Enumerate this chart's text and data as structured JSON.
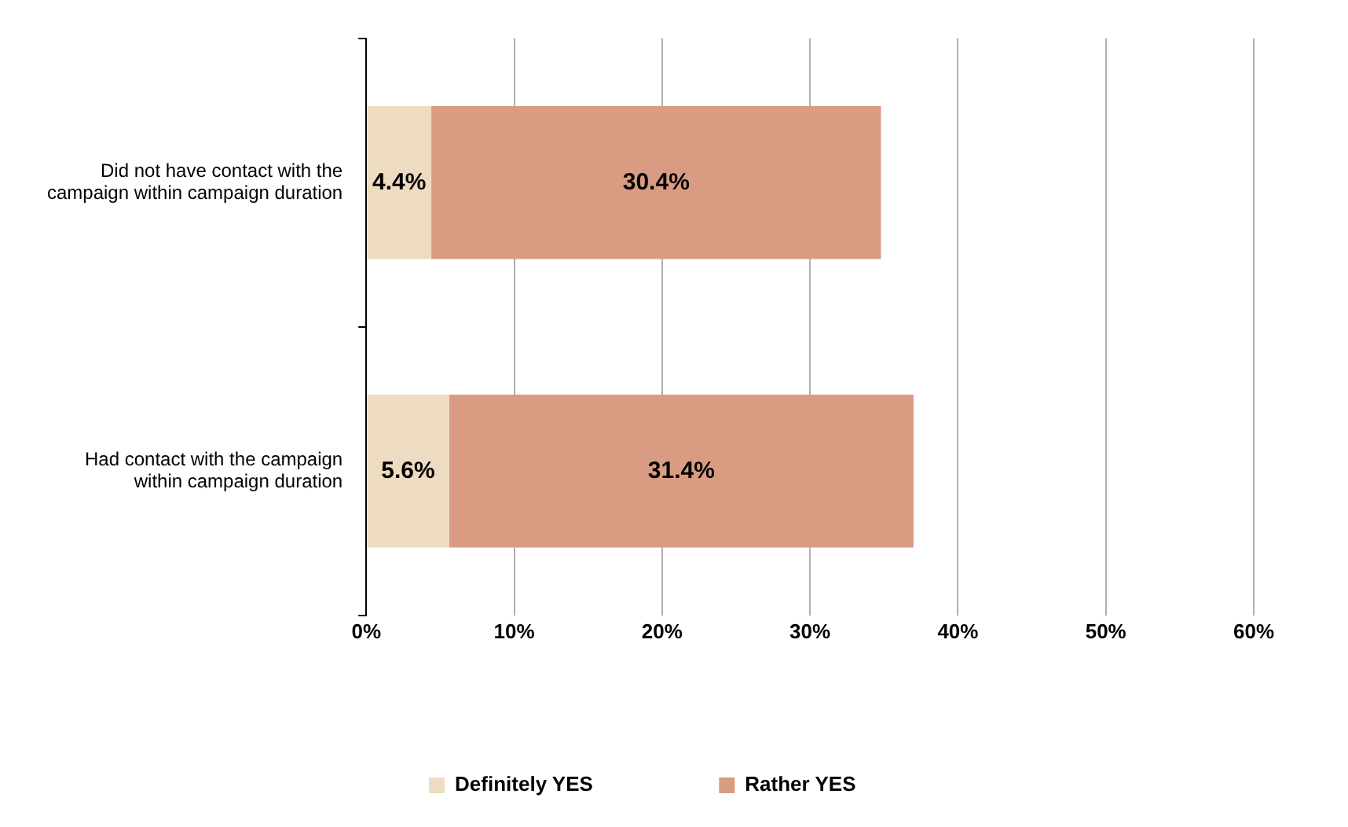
{
  "chart_data": {
    "type": "bar",
    "orientation": "horizontal",
    "stacked": true,
    "categories": [
      "Did not have contact with the campaign within campaign duration",
      "Had contact with the campaign within campaign duration"
    ],
    "series": [
      {
        "name": "Definitely YES",
        "color": "#eedcc2",
        "values": [
          4.4,
          5.6
        ],
        "value_labels": [
          "4.4%",
          "5.6%"
        ]
      },
      {
        "name": "Rather YES",
        "color": "#d99c82",
        "values": [
          30.4,
          31.4
        ],
        "value_labels": [
          "30.4%",
          "31.4%"
        ]
      }
    ],
    "xlim": [
      0,
      60
    ],
    "xticks": [
      {
        "value": 0,
        "label": "0%"
      },
      {
        "value": 10,
        "label": "10%"
      },
      {
        "value": 20,
        "label": "20%"
      },
      {
        "value": 30,
        "label": "30%"
      },
      {
        "value": 40,
        "label": "40%"
      },
      {
        "value": 50,
        "label": "50%"
      },
      {
        "value": 60,
        "label": "60%"
      }
    ],
    "grid": "x",
    "legend": "bottom"
  }
}
